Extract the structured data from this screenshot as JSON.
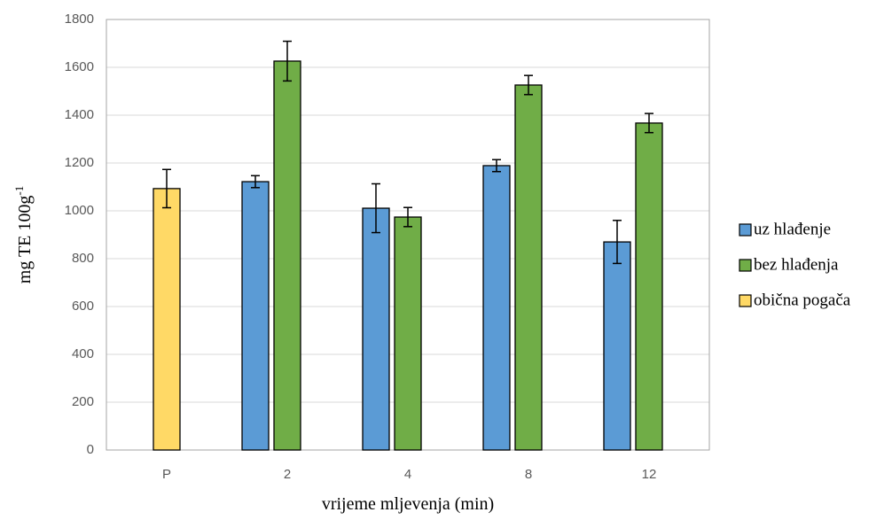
{
  "chart_data": {
    "type": "bar",
    "x_label": "vrijeme mljevenja (min)",
    "y_label": {
      "text": "mg TE 100g",
      "superscript": "-1"
    },
    "categories": [
      "P",
      "2",
      "4",
      "8",
      "12"
    ],
    "series": [
      {
        "name": "uz hlađenje",
        "color": "#5b9bd5",
        "values": [
          null,
          1122,
          1011,
          1189,
          870
        ],
        "errors": [
          null,
          25,
          102,
          25,
          90
        ]
      },
      {
        "name": "bez hlađenja",
        "color": "#70ad47",
        "values": [
          null,
          1626,
          974,
          1526,
          1367
        ],
        "errors": [
          null,
          83,
          40,
          40,
          40
        ]
      },
      {
        "name": "obična pogača",
        "color": "#ffd966",
        "values": [
          1093,
          null,
          null,
          null,
          null
        ],
        "errors": [
          80,
          null,
          null,
          null,
          null
        ]
      }
    ],
    "ylim": [
      0,
      1800
    ],
    "yticks": [
      0,
      200,
      400,
      600,
      800,
      1000,
      1200,
      1400,
      1600,
      1800
    ],
    "grid": true
  }
}
